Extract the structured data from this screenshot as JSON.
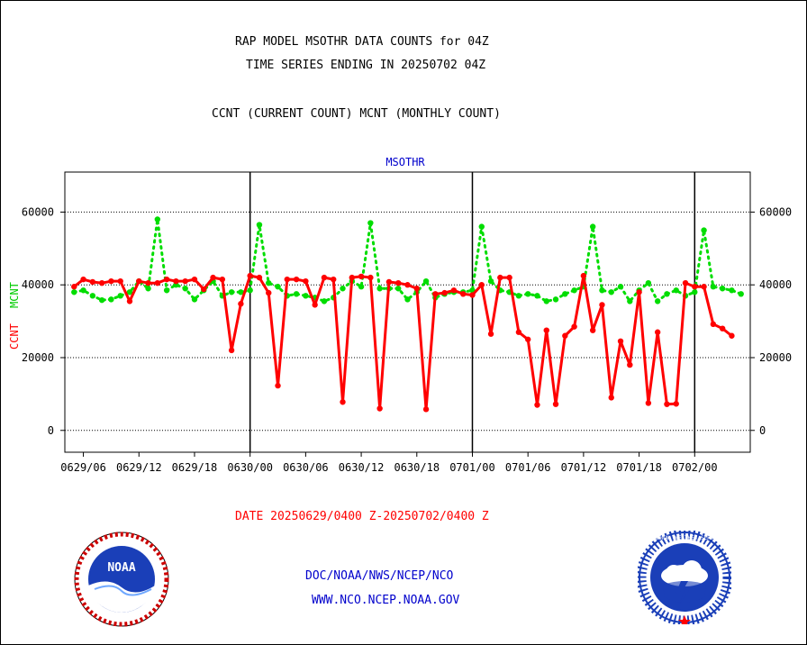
{
  "title_line1": "RAP MODEL MSOTHR DATA COUNTS for 04Z",
  "title_line2": "TIME SERIES ENDING IN 20250702 04Z",
  "subtitle": "CCNT (CURRENT COUNT) MCNT (MONTHLY COUNT)",
  "date_range": "DATE 20250629/0400 Z-20250702/0400 Z",
  "footer_link1": "DOC/NOAA/NWS/NCEP/NCO",
  "footer_link2": "WWW.NCO.NCEP.NOAA.GOV",
  "logo_left_text": "NOAA",
  "logo_right_text": "NATIONAL WEATHER SERVICE",
  "colors": {
    "ccnt": "#ff0000",
    "mcnt": "#00dd00",
    "link": "#0000cc",
    "axis": "#000000"
  },
  "chart_data": {
    "type": "line",
    "title": "MSOTHR",
    "ylabel_left": [
      "CCNT",
      "MCNT"
    ],
    "ylim": [
      -6000,
      71000
    ],
    "yticks": [
      0,
      20000,
      40000,
      60000
    ],
    "xlim": [
      -1,
      73
    ],
    "xticks": [
      {
        "x": 1,
        "label": "0629/06"
      },
      {
        "x": 7,
        "label": "0629/12"
      },
      {
        "x": 13,
        "label": "0629/18"
      },
      {
        "x": 19,
        "label": "0630/00"
      },
      {
        "x": 25,
        "label": "0630/06"
      },
      {
        "x": 31,
        "label": "0630/12"
      },
      {
        "x": 37,
        "label": "0630/18"
      },
      {
        "x": 43,
        "label": "0701/00"
      },
      {
        "x": 49,
        "label": "0701/06"
      },
      {
        "x": 55,
        "label": "0701/12"
      },
      {
        "x": 61,
        "label": "0701/18"
      },
      {
        "x": 67,
        "label": "0702/00"
      }
    ],
    "day_separators": [
      19,
      43,
      67
    ],
    "grid": true,
    "series": [
      {
        "name": "CCNT",
        "color": "#ff0000",
        "style": "solid",
        "values": [
          39500,
          41500,
          40800,
          40500,
          41000,
          41000,
          35500,
          41000,
          40500,
          40500,
          41500,
          41000,
          41000,
          41500,
          38800,
          42000,
          41500,
          22000,
          34800,
          42500,
          42000,
          37800,
          12300,
          41500,
          41500,
          41000,
          34500,
          42000,
          41500,
          7800,
          42000,
          42300,
          42000,
          6000,
          40800,
          40500,
          40000,
          39000,
          5800,
          37500,
          37800,
          38500,
          37500,
          37200,
          40000,
          26500,
          42000,
          42000,
          27000,
          25000,
          7000,
          27500,
          7200,
          26000,
          28500,
          42500,
          27500,
          34500,
          9000,
          24500,
          18000,
          38000,
          7500,
          27000,
          7200,
          7300,
          40500,
          39500,
          39500,
          29200,
          28000,
          26000
        ]
      },
      {
        "name": "MCNT",
        "color": "#00dd00",
        "style": "dotted",
        "values": [
          38000,
          38500,
          37000,
          35800,
          36000,
          37000,
          38000,
          41000,
          39000,
          58000,
          38500,
          40000,
          39000,
          36000,
          38500,
          41000,
          37000,
          38000,
          38000,
          38500,
          56500,
          40500,
          39500,
          37000,
          37500,
          37000,
          36500,
          35500,
          36500,
          39000,
          41000,
          39500,
          57000,
          39000,
          39000,
          39000,
          36000,
          38000,
          41000,
          36500,
          37500,
          38000,
          38000,
          38500,
          56000,
          41000,
          38500,
          38000,
          37000,
          37500,
          37000,
          35500,
          36000,
          37500,
          38500,
          39500,
          56000,
          38500,
          38000,
          39500,
          35500,
          38500,
          40500,
          35500,
          37500,
          38500,
          37000,
          38000,
          55000,
          39500,
          39000,
          38500,
          37500
        ]
      }
    ]
  }
}
